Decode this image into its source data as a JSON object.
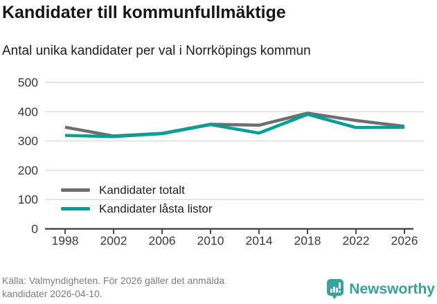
{
  "header": {
    "title": "Kandidater till kommunfullmäktige",
    "subtitle": "Antal unika kandidater per val i Norrköpings kommun"
  },
  "chart_data": {
    "type": "line",
    "title": "Kandidater till kommunfullmäktige",
    "subtitle": "Antal unika kandidater per val i Norrköpings kommun",
    "categories": [
      1998,
      2002,
      2006,
      2010,
      2014,
      2018,
      2022,
      2026
    ],
    "series": [
      {
        "name": "Kandidater totalt",
        "color": "#6e6e6e",
        "values": [
          347,
          317,
          326,
          357,
          354,
          395,
          370,
          350
        ]
      },
      {
        "name": "Kandidater låsta listor",
        "color": "#00a099",
        "values": [
          319,
          315,
          325,
          356,
          327,
          391,
          346,
          347
        ]
      }
    ],
    "xlabel": "",
    "ylabel": "",
    "ylim": [
      0,
      500
    ],
    "yticks": [
      0,
      100,
      200,
      300,
      400,
      500
    ],
    "grid": true,
    "legend_position": "inside-bottom-left",
    "grid_color": "#dcdcdc",
    "axis_color": "#3b3b3b",
    "tick_label_color": "#3b3b3b"
  },
  "footer": {
    "source": "Källa: Valmyndigheten. För 2026 gäller det anmälda kandidater 2026-04-10.",
    "brand": "Newsworthy",
    "brand_color": "#35a39c",
    "brand_icon": "bar-chart-bubble-icon"
  }
}
